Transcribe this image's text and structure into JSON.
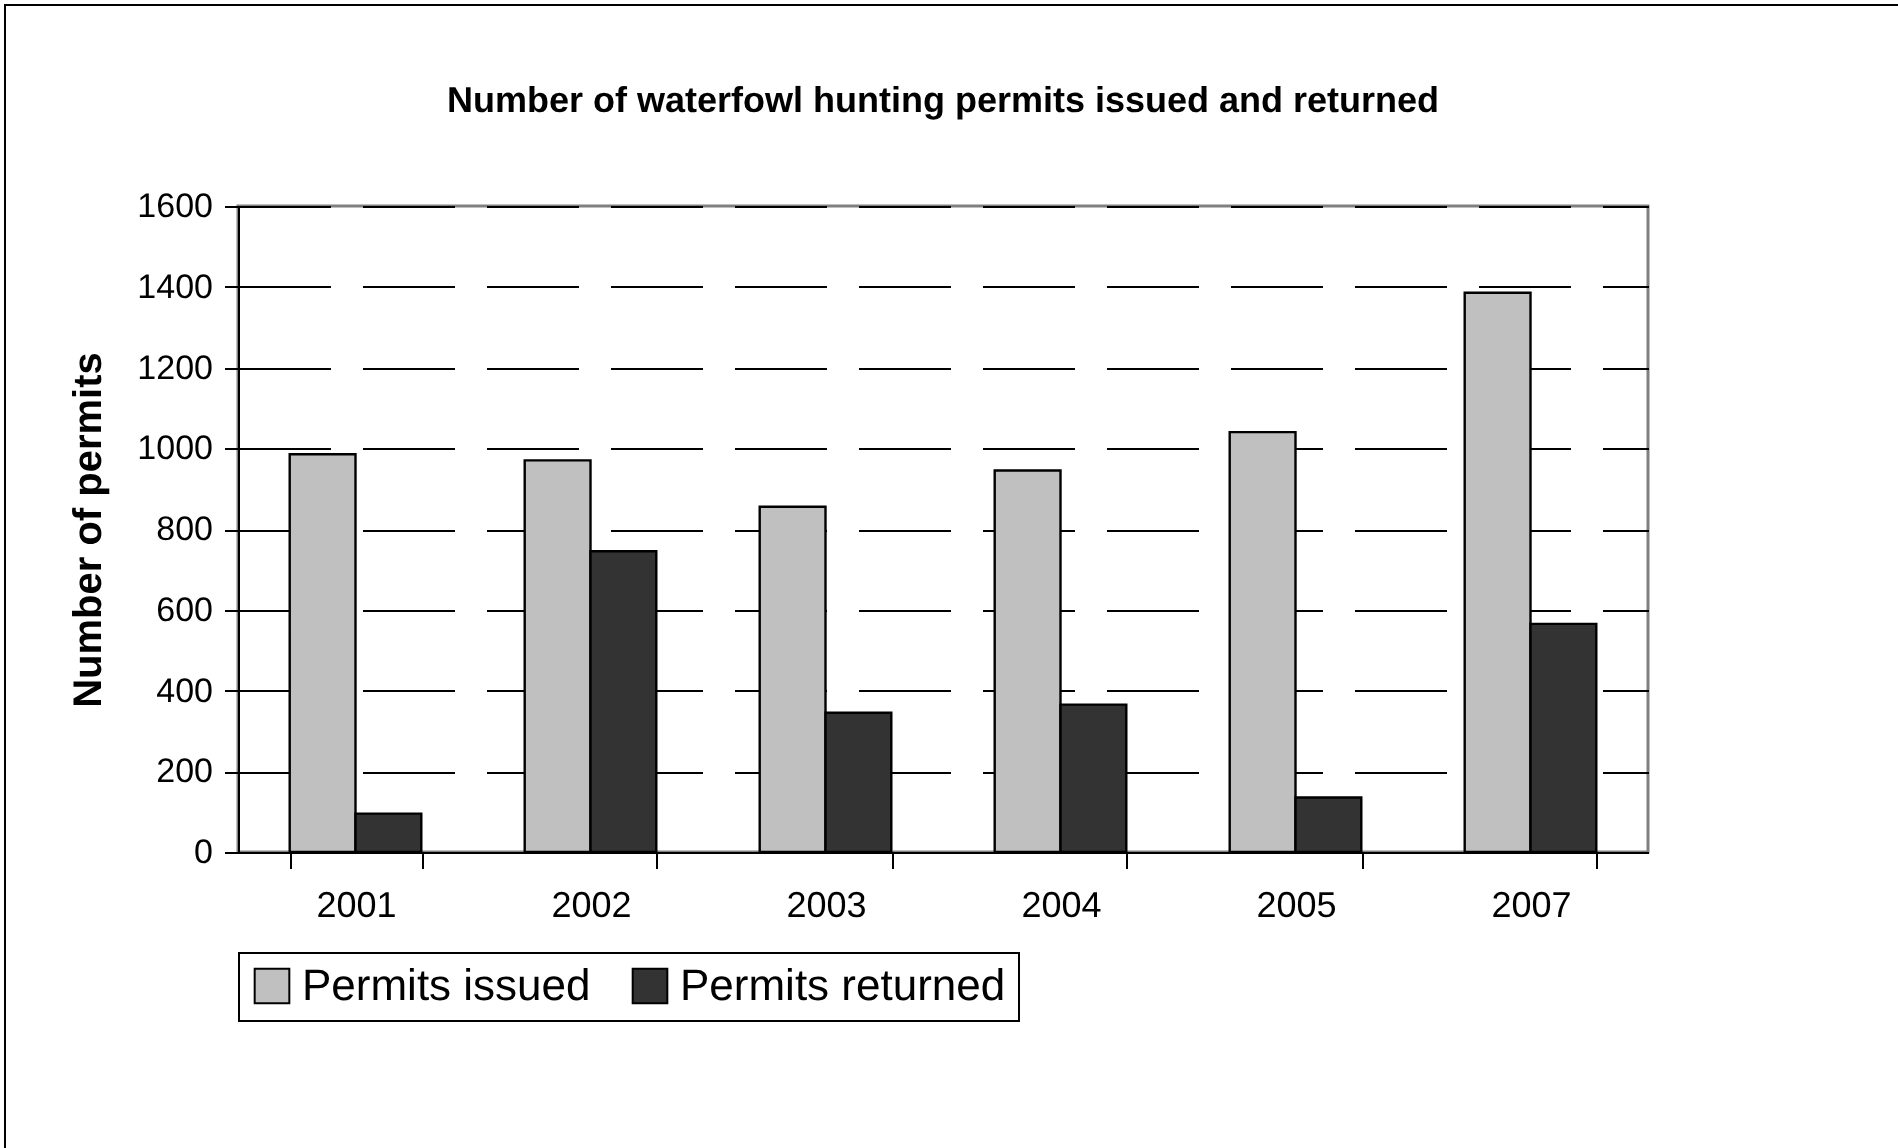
{
  "chart_data": {
    "type": "bar",
    "title": "Number of waterfowl hunting permits issued and returned",
    "ylabel": "Number of permits",
    "categories": [
      "2001",
      "2002",
      "2003",
      "2004",
      "2005",
      "2007"
    ],
    "series": [
      {
        "name": "Permits issued",
        "color": "#c0c0c0",
        "values": [
          985,
          970,
          855,
          945,
          1040,
          1385
        ]
      },
      {
        "name": "Permits returned",
        "color": "#333333",
        "values": [
          95,
          745,
          345,
          365,
          135,
          565
        ]
      }
    ],
    "ylim": [
      0,
      1600
    ],
    "yticks": [
      0,
      200,
      400,
      600,
      800,
      1000,
      1200,
      1400,
      1600
    ],
    "grid": "y",
    "legend": "bottom"
  }
}
